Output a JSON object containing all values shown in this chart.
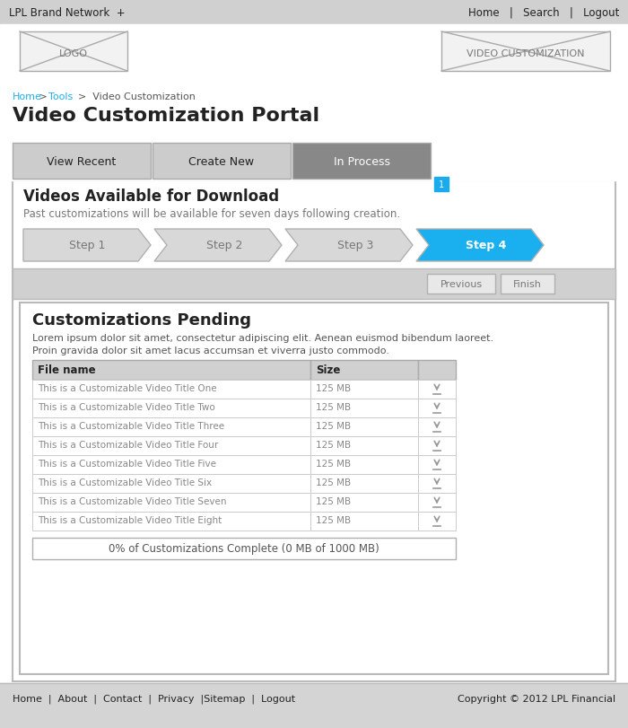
{
  "white": "#ffffff",
  "light_gray": "#d4d4d4",
  "light_gray2": "#e0e0e0",
  "mid_gray": "#999999",
  "dark_gray": "#777777",
  "text_dark": "#222222",
  "border_color": "#b0b0b0",
  "nav_bg": "#d0d0d0",
  "tab_active_bg": "#888888",
  "tab_inactive_bg": "#cccccc",
  "footer_bg": "#d4d4d4",
  "blue": "#1ab0f0",
  "blue_badge": "#1aabee",
  "header_text": "LPL Brand Network  +",
  "nav_right": "Home   |   Search   |   Logout",
  "page_title": "Video Customization Portal",
  "tab1": "View Recent",
  "tab2": "Create New",
  "tab3": "In Process",
  "section_title": "Videos Available for Download",
  "section_sub": "Past customizations will be available for seven days following creation.",
  "steps": [
    "Step 1",
    "Step 2",
    "Step 3",
    "Step 4"
  ],
  "btn_previous": "Previous",
  "btn_finish": "Finish",
  "card_title": "Customizations Pending",
  "lorem1": "Lorem ipsum dolor sit amet, consectetur adipiscing elit. Aenean euismod bibendum laoreet.",
  "lorem2": "Proin gravida dolor sit amet lacus accumsan et viverra justo commodo.",
  "table_col1_header": "File name",
  "table_col2_header": "Size",
  "table_rows": [
    [
      "This is a Customizable Video Title One",
      "125 MB"
    ],
    [
      "This is a Customizable Video Title Two",
      "125 MB"
    ],
    [
      "This is a Customizable Video Title Three",
      "125 MB"
    ],
    [
      "This is a Customizable Video Title Four",
      "125 MB"
    ],
    [
      "This is a Customizable Video Title Five",
      "125 MB"
    ],
    [
      "This is a Customizable Video Title Six",
      "125 MB"
    ],
    [
      "This is a Customizable Video Title Seven",
      "125 MB"
    ],
    [
      "This is a Customizable Video Title Eight",
      "125 MB"
    ]
  ],
  "progress_text": "0% of Customizations Complete (0 MB of 1000 MB)",
  "footer_links": "Home  |  About  |  Contact  |  Privacy  |Sitemap  |  Logout",
  "copyright": "Copyright © 2012 LPL Financial"
}
